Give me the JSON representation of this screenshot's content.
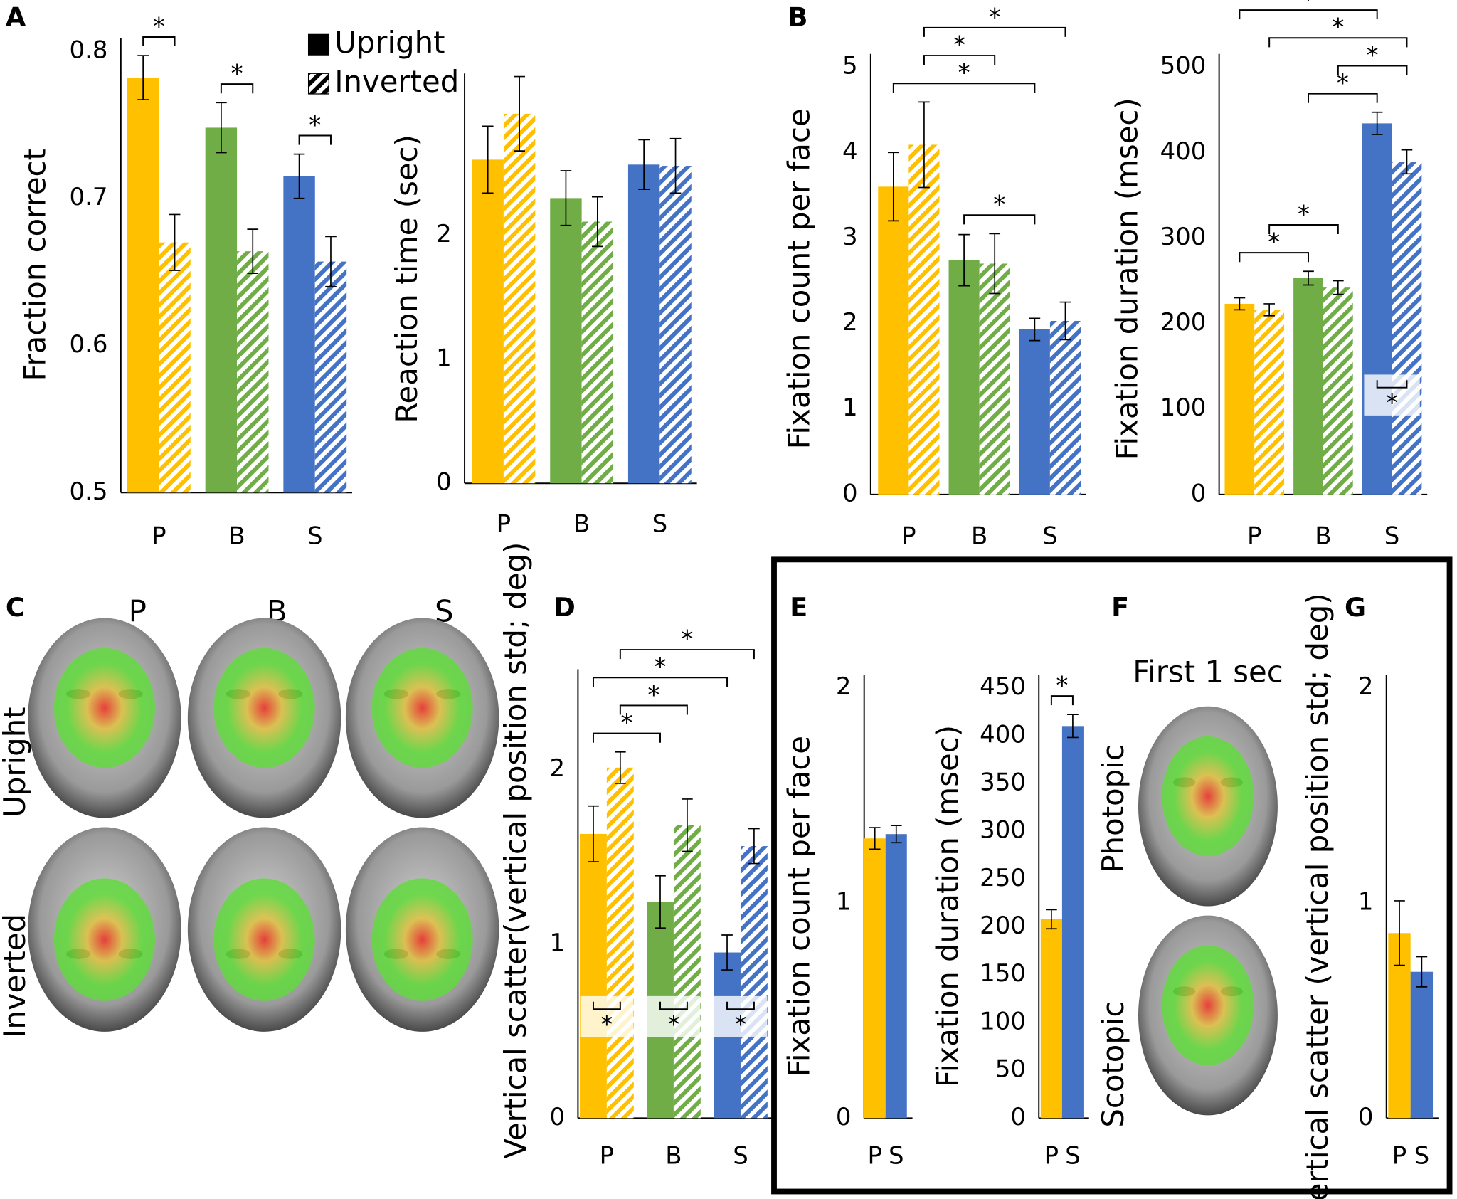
{
  "panel_labels": [
    "A",
    "B",
    "C",
    "D",
    "E",
    "F",
    "G"
  ],
  "face_panels": {
    "columns": [
      "P",
      "B",
      "S"
    ],
    "rows": [
      "Upright",
      "Inverted"
    ]
  },
  "first_second_panel": {
    "title": "First 1 sec",
    "rows": [
      "Photopic",
      "Scotopic"
    ]
  },
  "chart_data": [
    {
      "type": "bar",
      "y_label": "Fraction correct",
      "categories": [
        "P",
        "B",
        "S"
      ],
      "category_colors": [
        "#FFC000",
        "#70AD47",
        "#4472C4"
      ],
      "series": [
        {
          "name": "Upright",
          "pattern": "solid",
          "values": [
            0.782,
            0.748,
            0.715
          ],
          "errors": [
            0.015,
            0.017,
            0.015
          ]
        },
        {
          "name": "Inverted",
          "pattern": "hatched",
          "values": [
            0.67,
            0.664,
            0.657
          ],
          "errors": [
            0.019,
            0.015,
            0.017
          ]
        }
      ],
      "ylim": [
        0.5,
        0.8
      ],
      "yticks": [
        0.5,
        0.6,
        0.7,
        0.8
      ],
      "legend": true,
      "legend_color": "#000000",
      "significance": [
        {
          "from": [
            0,
            0
          ],
          "to": [
            0,
            1
          ],
          "label": "*"
        },
        {
          "from": [
            1,
            0
          ],
          "to": [
            1,
            1
          ],
          "label": "*"
        },
        {
          "from": [
            2,
            0
          ],
          "to": [
            2,
            1
          ],
          "label": "*"
        }
      ]
    },
    {
      "type": "bar",
      "y_label": "Reaction time (sec)",
      "categories": [
        "P",
        "B",
        "S"
      ],
      "category_colors": [
        "#FFC000",
        "#70AD47",
        "#4472C4"
      ],
      "series": [
        {
          "name": "Upright",
          "pattern": "solid",
          "values": [
            2.61,
            2.3,
            2.57
          ],
          "errors": [
            0.27,
            0.22,
            0.2
          ]
        },
        {
          "name": "Inverted",
          "pattern": "hatched",
          "values": [
            2.98,
            2.11,
            2.56
          ],
          "errors": [
            0.3,
            0.2,
            0.22
          ]
        }
      ],
      "ylim": [
        0,
        3.2
      ],
      "yticks": [
        0,
        1,
        2
      ]
    },
    {
      "type": "bar",
      "y_label": "Fixation count per face",
      "categories": [
        "P",
        "B",
        "S"
      ],
      "category_colors": [
        "#FFC000",
        "#70AD47",
        "#4472C4"
      ],
      "series": [
        {
          "name": "Upright",
          "pattern": "solid",
          "values": [
            3.6,
            2.74,
            1.93
          ],
          "errors": [
            0.4,
            0.3,
            0.13
          ]
        },
        {
          "name": "Inverted",
          "pattern": "hatched",
          "values": [
            4.09,
            2.7,
            2.03
          ],
          "errors": [
            0.5,
            0.35,
            0.22
          ]
        }
      ],
      "ylim": [
        0,
        5
      ],
      "yticks": [
        0,
        1,
        2,
        3,
        4,
        5
      ],
      "significance": [
        {
          "from": [
            1,
            0
          ],
          "to": [
            2,
            0
          ],
          "label": "*"
        },
        {
          "from": [
            0,
            0
          ],
          "to": [
            2,
            0
          ],
          "label": "*"
        },
        {
          "from": [
            0,
            1
          ],
          "to": [
            1,
            1
          ],
          "label": "*"
        },
        {
          "from": [
            0,
            1
          ],
          "to": [
            2,
            1
          ],
          "label": "*"
        }
      ]
    },
    {
      "type": "bar",
      "y_label": "Fixation duration (msec)",
      "categories": [
        "P",
        "B",
        "S"
      ],
      "category_colors": [
        "#FFC000",
        "#70AD47",
        "#4472C4"
      ],
      "series": [
        {
          "name": "Upright",
          "pattern": "solid",
          "values": [
            223,
            253,
            434
          ],
          "errors": [
            7,
            8,
            13
          ]
        },
        {
          "name": "Inverted",
          "pattern": "hatched",
          "values": [
            216,
            242,
            389
          ],
          "errors": [
            7,
            8,
            14
          ]
        }
      ],
      "ylim": [
        0,
        500
      ],
      "yticks": [
        0,
        100,
        200,
        300,
        400,
        500
      ],
      "significance": [
        {
          "from": [
            2,
            0
          ],
          "to": [
            2,
            1
          ],
          "label": "*",
          "inside": true
        },
        {
          "from": [
            0,
            0
          ],
          "to": [
            1,
            0
          ],
          "label": "*"
        },
        {
          "from": [
            0,
            1
          ],
          "to": [
            1,
            1
          ],
          "label": "*"
        },
        {
          "from": [
            1,
            0
          ],
          "to": [
            2,
            0
          ],
          "label": "*"
        },
        {
          "from": [
            1,
            1
          ],
          "to": [
            2,
            1
          ],
          "label": "*"
        },
        {
          "from": [
            0,
            1
          ],
          "to": [
            2,
            1
          ],
          "label": "*"
        },
        {
          "from": [
            0,
            0
          ],
          "to": [
            2,
            0
          ],
          "label": "*"
        }
      ]
    },
    {
      "type": "bar",
      "y_label": "Vertical scatter(vertical position std; deg)",
      "categories": [
        "P",
        "B",
        "S"
      ],
      "category_colors": [
        "#FFC000",
        "#70AD47",
        "#4472C4"
      ],
      "series": [
        {
          "name": "Upright",
          "pattern": "solid",
          "values": [
            1.63,
            1.24,
            0.95
          ],
          "errors": [
            0.16,
            0.15,
            0.1
          ]
        },
        {
          "name": "Inverted",
          "pattern": "hatched",
          "values": [
            2.01,
            1.68,
            1.56
          ],
          "errors": [
            0.09,
            0.15,
            0.1
          ]
        }
      ],
      "ylim": [
        0,
        2.5
      ],
      "yticks": [
        0,
        1,
        2
      ],
      "significance": [
        {
          "from": [
            0,
            0
          ],
          "to": [
            0,
            1
          ],
          "label": "*",
          "inside": true
        },
        {
          "from": [
            1,
            0
          ],
          "to": [
            1,
            1
          ],
          "label": "*",
          "inside": true
        },
        {
          "from": [
            2,
            0
          ],
          "to": [
            2,
            1
          ],
          "label": "*",
          "inside": true
        },
        {
          "from": [
            0,
            0
          ],
          "to": [
            1,
            0
          ],
          "label": "*"
        },
        {
          "from": [
            0,
            1
          ],
          "to": [
            1,
            1
          ],
          "label": "*"
        },
        {
          "from": [
            0,
            0
          ],
          "to": [
            2,
            0
          ],
          "label": "*"
        },
        {
          "from": [
            0,
            1
          ],
          "to": [
            2,
            1
          ],
          "label": "*"
        }
      ]
    },
    {
      "type": "bar",
      "y_label": "Fixation count per face",
      "categories": [
        "P",
        "S"
      ],
      "category_colors": [
        "#FFC000",
        "#4472C4"
      ],
      "values": [
        1.3,
        1.32
      ],
      "errors": [
        0.05,
        0.04
      ],
      "ylim": [
        0,
        2
      ],
      "yticks": [
        0,
        1,
        2
      ]
    },
    {
      "type": "bar",
      "y_label": "Fixation duration (msec)",
      "categories": [
        "P",
        "S"
      ],
      "category_colors": [
        "#FFC000",
        "#4472C4"
      ],
      "values": [
        208,
        410
      ],
      "errors": [
        10,
        12
      ],
      "ylim": [
        0,
        450
      ],
      "yticks": [
        0,
        50,
        100,
        150,
        200,
        250,
        300,
        350,
        400,
        450
      ],
      "significance": [
        {
          "from": [
            0,
            0
          ],
          "to": [
            1,
            0
          ],
          "label": "*"
        }
      ]
    },
    {
      "type": "bar",
      "y_label": "Vertical scatter (vertical position std; deg)",
      "categories": [
        "P",
        "S"
      ],
      "category_colors": [
        "#FFC000",
        "#4472C4"
      ],
      "values": [
        0.86,
        0.68
      ],
      "errors": [
        0.15,
        0.07
      ],
      "ylim": [
        0,
        2
      ],
      "yticks": [
        0,
        1,
        2
      ]
    }
  ]
}
